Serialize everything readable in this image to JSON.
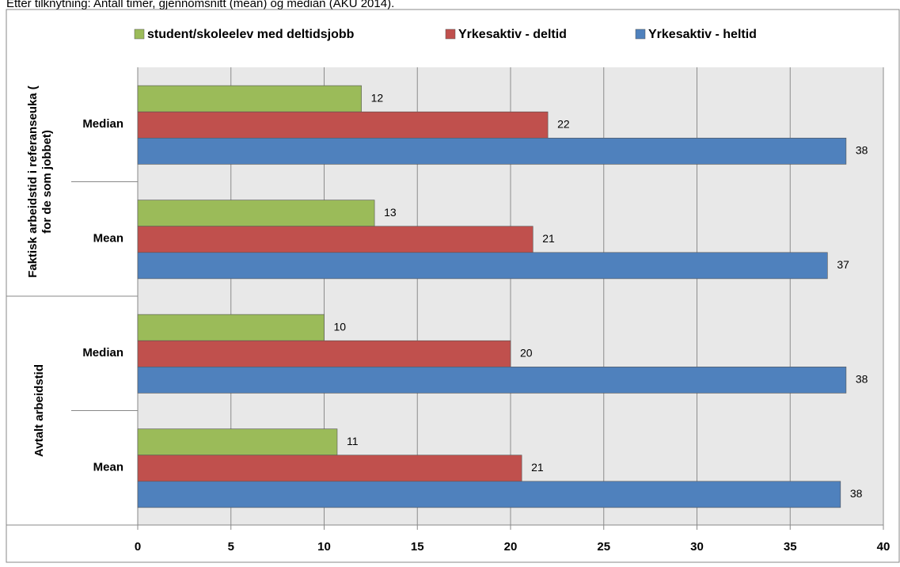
{
  "chart_data": {
    "type": "hbar",
    "title": "Etter tilknytning: Antall timer, gjennomsnitt (mean) og median (AKU 2014).",
    "groups": [
      {
        "label": [
          "Faktisk arbeidstid i referanseuka (",
          "for de som jobbet)"
        ],
        "categories": [
          "Median",
          "Mean"
        ]
      },
      {
        "label": [
          "Avtalt arbeidstid"
        ],
        "categories": [
          "Median",
          "Mean"
        ]
      }
    ],
    "series": [
      {
        "name": "student/skoleelev med deltidsjobb",
        "color": "#9bbb59",
        "values": [
          12,
          12.7,
          10,
          10.7
        ],
        "value_labels": [
          "12",
          "13",
          "10",
          "11"
        ]
      },
      {
        "name": "Yrkesaktiv - deltid",
        "color": "#c0504d",
        "values": [
          22,
          21.2,
          20,
          20.6
        ],
        "value_labels": [
          "22",
          "21",
          "20",
          "21"
        ]
      },
      {
        "name": "Yrkesaktiv - heltid",
        "color": "#4f81bd",
        "values": [
          38,
          37,
          38,
          37.7
        ],
        "value_labels": [
          "38",
          "37",
          "38",
          "38"
        ]
      }
    ],
    "xlim": [
      0,
      40
    ],
    "xticks": [
      0,
      5,
      10,
      15,
      20,
      25,
      30,
      35,
      40
    ],
    "grid": true,
    "legend": "top"
  }
}
